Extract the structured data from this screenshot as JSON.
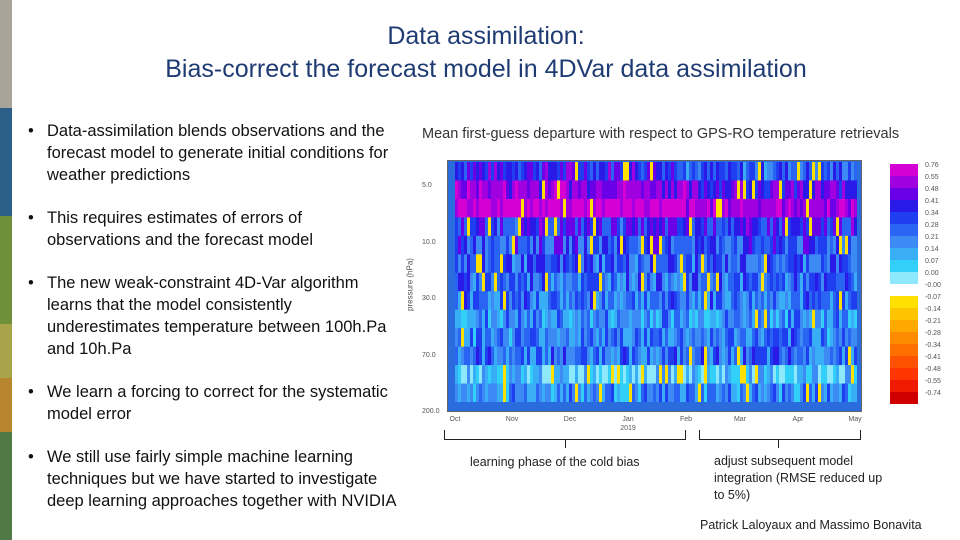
{
  "slide": {
    "title_line1": "Data assimilation:",
    "title_line2": "Bias-correct the forecast model in 4DVar data assimilation",
    "bullets": [
      "Data-assimilation blends observations and the forecast model to generate initial conditions for weather predictions",
      "This requires estimates of errors of observations and the forecast model",
      "The new weak-constraint 4D-Var algorithm learns that the model consistently underestimates temperature between 100h.Pa and 10h.Pa",
      "We learn a forcing to correct for the systematic model error",
      "We still use fairly simple machine learning techniques but we have started to investigate deep learning approaches together with NVIDIA"
    ],
    "chart_title": "Mean first-guess departure with respect to GPS-RO temperature retrievals",
    "annotation_left": "learning phase of the cold bias",
    "annotation_right": "adjust subsequent model integration (RMSE reduced up to 5%)",
    "author": "Patrick Laloyaux and Massimo Bonavita",
    "accent_colors": [
      "#a8a49a",
      "#2b5f8a",
      "#6f8f3a",
      "#a7a44a",
      "#b8862e",
      "#4f7a45"
    ]
  },
  "chart_data": {
    "type": "heatmap",
    "title": "Mean first-guess departure with respect to GPS-RO temperature retrievals",
    "xlabel": "",
    "ylabel": "pressure (hPa)",
    "x_ticks": [
      "Oct",
      "Nov",
      "Dec",
      "Jan",
      "Feb",
      "Mar",
      "Apr",
      "May"
    ],
    "x_subtitle": "2019",
    "y_ticks": [
      "5.0",
      "10.0",
      "30.0",
      "70.0",
      "200.0"
    ],
    "y_scale": "log",
    "colorbar_values": [
      "0.76",
      "0.55",
      "0.48",
      "0.41",
      "0.34",
      "0.28",
      "0.21",
      "0.14",
      "0.07",
      "0.00",
      "-0.00",
      "-0.07",
      "-0.14",
      "-0.21",
      "-0.28",
      "-0.34",
      "-0.41",
      "-0.48",
      "-0.55",
      "-0.74"
    ],
    "colorbar_colors": [
      "#d400d4",
      "#a000e0",
      "#6a00e8",
      "#2a1ae8",
      "#1f3ef0",
      "#2a64f2",
      "#3d8af5",
      "#39aef7",
      "#32d0f8",
      "#8ee8fb",
      "#ffffff",
      "#ffe000",
      "#ffc400",
      "#ffa800",
      "#ff8c00",
      "#ff7000",
      "#ff5200",
      "#ff3500",
      "#f01a00",
      "#d00000"
    ],
    "rows": [
      {
        "pressure": "3.0",
        "bias": 0.3
      },
      {
        "pressure": "4.0",
        "bias": 0.45
      },
      {
        "pressure": "5.0",
        "bias": 0.6
      },
      {
        "pressure": "7.0",
        "bias": 0.38
      },
      {
        "pressure": "10.0",
        "bias": 0.33
      },
      {
        "pressure": "15.0",
        "bias": 0.3
      },
      {
        "pressure": "20.0",
        "bias": 0.28
      },
      {
        "pressure": "30.0",
        "bias": 0.25
      },
      {
        "pressure": "50.0",
        "bias": 0.2
      },
      {
        "pressure": "70.0",
        "bias": 0.24
      },
      {
        "pressure": "100.0",
        "bias": 0.26
      },
      {
        "pressure": "150.0",
        "bias": 0.08
      },
      {
        "pressure": "200.0",
        "bias": 0.2
      }
    ]
  }
}
